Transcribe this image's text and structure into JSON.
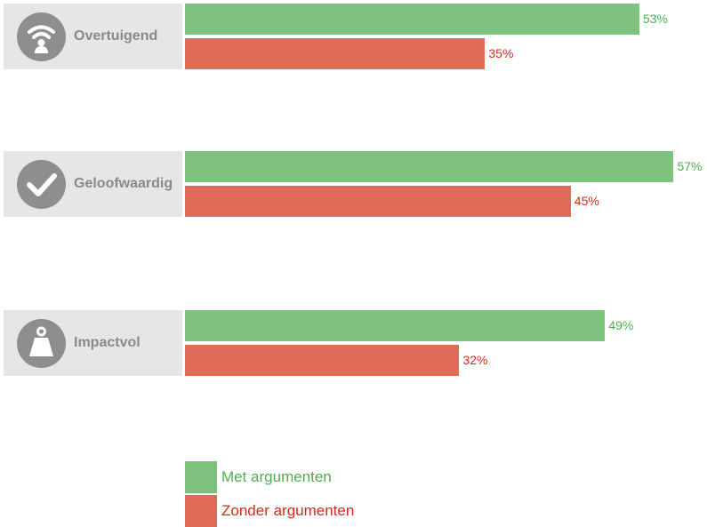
{
  "chart_data": {
    "type": "bar",
    "orientation": "horizontal",
    "categories": [
      "Overtuigend",
      "Geloofwaardig",
      "Impactvol"
    ],
    "category_icons": [
      "wifi-person-icon",
      "checkmark-icon",
      "weight-icon"
    ],
    "series": [
      {
        "name": "Met argumenten",
        "values": [
          53,
          57,
          49
        ],
        "labels": [
          "53%",
          "57%",
          "49%"
        ],
        "color": "#7fc17f",
        "label_color": "#4caf50"
      },
      {
        "name": "Zonder argumenten",
        "values": [
          35,
          45,
          32
        ],
        "labels": [
          "35%",
          "45%",
          "32%"
        ],
        "color": "#e06b58",
        "label_color": "#d42a1e"
      }
    ],
    "xlim": [
      0,
      100
    ],
    "legend_position": "bottom"
  }
}
